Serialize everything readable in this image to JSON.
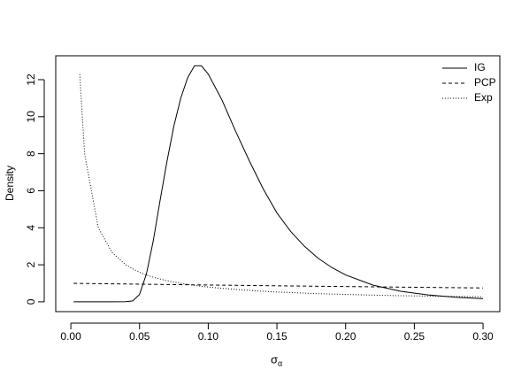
{
  "chart_data": {
    "type": "line",
    "x_label": {
      "symbol": "σ",
      "subscript": "α"
    },
    "y_label": "Density",
    "x": [
      0.002,
      0.0065,
      0.01,
      0.02,
      0.03,
      0.04,
      0.045,
      0.05,
      0.055,
      0.06,
      0.065,
      0.07,
      0.075,
      0.08,
      0.085,
      0.09,
      0.095,
      0.1,
      0.11,
      0.12,
      0.13,
      0.14,
      0.15,
      0.16,
      0.17,
      0.18,
      0.19,
      0.2,
      0.22,
      0.24,
      0.26,
      0.28,
      0.3
    ],
    "series": [
      {
        "name": "IG",
        "color": "#000000",
        "line_style": "solid",
        "values": [
          0,
          0,
          0,
          0,
          0,
          0.01,
          0.05,
          0.4,
          1.5,
          3.3,
          5.5,
          7.6,
          9.5,
          11.0,
          12.1,
          12.75,
          12.75,
          12.3,
          10.9,
          9.2,
          7.6,
          6.1,
          4.8,
          3.8,
          3.0,
          2.35,
          1.85,
          1.45,
          0.9,
          0.57,
          0.37,
          0.25,
          0.17
        ]
      },
      {
        "name": "PCP",
        "color": "#000000",
        "line_style": "dashed",
        "values": [
          0.998,
          0.994,
          0.99,
          0.981,
          0.972,
          0.962,
          0.958,
          0.953,
          0.949,
          0.944,
          0.94,
          0.935,
          0.931,
          0.926,
          0.922,
          0.917,
          0.913,
          0.908,
          0.9,
          0.891,
          0.883,
          0.874,
          0.866,
          0.858,
          0.849,
          0.841,
          0.833,
          0.825,
          0.81,
          0.794,
          0.779,
          0.764,
          0.75
        ]
      },
      {
        "name": "Exp",
        "color": "#000000",
        "line_style": "dotted",
        "values": [
          null,
          12.3,
          8,
          4,
          2.67,
          2,
          1.78,
          1.6,
          1.45,
          1.33,
          1.23,
          1.14,
          1.07,
          1,
          0.94,
          0.89,
          0.84,
          0.8,
          0.73,
          0.67,
          0.62,
          0.57,
          0.53,
          0.5,
          0.47,
          0.44,
          0.42,
          0.4,
          0.36,
          0.33,
          0.31,
          0.29,
          0.27
        ]
      }
    ],
    "xlim": [
      -0.011,
      0.3122
    ],
    "ylim": [
      -0.53,
      13.29
    ],
    "xticks": [
      {
        "value": 0,
        "label": "0.00"
      },
      {
        "value": 0.05,
        "label": "0.05"
      },
      {
        "value": 0.1,
        "label": "0.10"
      },
      {
        "value": 0.15,
        "label": "0.15"
      },
      {
        "value": 0.2,
        "label": "0.20"
      },
      {
        "value": 0.25,
        "label": "0.25"
      },
      {
        "value": 0.3,
        "label": "0.30"
      }
    ],
    "yticks": [
      0,
      2,
      4,
      6,
      8,
      10,
      12
    ],
    "legend": "top-right",
    "grid": false
  }
}
